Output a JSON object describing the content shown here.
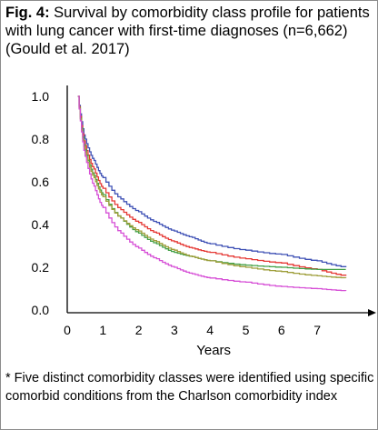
{
  "figure": {
    "title_bold": "Fig. 4:",
    "title_rest": " Survival by comorbidity class profile for patients with lung cancer with first-time diagnoses (n=6,662) (Gould et al. 2017)",
    "footnote": "* Five distinct comorbidity classes were identified using specific comorbid conditions from the Charlson comorbidity index"
  },
  "chart_data": {
    "type": "line",
    "title": "Survival by comorbidity class profile for patients with lung cancer with first-time diagnoses (n=6,662) (Gould et al. 2017)",
    "xlabel": "Years",
    "ylabel": "",
    "xlim": [
      0,
      8.6
    ],
    "ylim": [
      0,
      1.0
    ],
    "x_ticks": [
      "0",
      "1",
      "2",
      "3",
      "4",
      "5",
      "6",
      "7"
    ],
    "y_ticks": [
      "1.0",
      "0.8",
      "0.6",
      "0.4",
      "0.2",
      "0.0"
    ],
    "grid": false,
    "series": [
      {
        "color": "#3f51b5",
        "x": [
          0.3,
          0.5,
          0.75,
          1.0,
          1.5,
          2.0,
          2.5,
          3.0,
          3.5,
          4.0,
          5.0,
          6.0,
          7.0,
          7.8
        ],
        "values": [
          1.0,
          0.8,
          0.7,
          0.62,
          0.52,
          0.46,
          0.41,
          0.37,
          0.34,
          0.31,
          0.28,
          0.26,
          0.23,
          0.2
        ]
      },
      {
        "color": "#e53935",
        "x": [
          0.3,
          0.5,
          0.75,
          1.0,
          1.5,
          2.0,
          2.5,
          3.0,
          3.5,
          4.0,
          5.0,
          6.0,
          7.0,
          7.8
        ],
        "values": [
          1.0,
          0.77,
          0.66,
          0.57,
          0.47,
          0.41,
          0.36,
          0.32,
          0.29,
          0.27,
          0.24,
          0.22,
          0.19,
          0.16
        ]
      },
      {
        "color": "#43a047",
        "x": [
          0.3,
          0.5,
          0.75,
          1.0,
          1.5,
          2.0,
          2.5,
          3.0,
          3.5,
          4.0,
          5.0,
          6.0,
          7.0,
          7.8
        ],
        "values": [
          1.0,
          0.75,
          0.63,
          0.54,
          0.43,
          0.36,
          0.31,
          0.27,
          0.25,
          0.23,
          0.21,
          0.2,
          0.19,
          0.19
        ]
      },
      {
        "color": "#9e9e3a",
        "x": [
          0.3,
          0.5,
          0.75,
          1.0,
          1.5,
          2.0,
          2.5,
          3.0,
          3.5,
          4.0,
          5.0,
          6.0,
          7.0,
          7.8
        ],
        "values": [
          1.0,
          0.74,
          0.62,
          0.53,
          0.43,
          0.37,
          0.32,
          0.28,
          0.25,
          0.23,
          0.2,
          0.18,
          0.16,
          0.15
        ]
      },
      {
        "color": "#d64fd6",
        "x": [
          0.3,
          0.5,
          0.75,
          1.0,
          1.5,
          2.0,
          2.5,
          3.0,
          3.5,
          4.0,
          5.0,
          6.0,
          7.0,
          7.8
        ],
        "values": [
          1.0,
          0.72,
          0.58,
          0.48,
          0.36,
          0.29,
          0.24,
          0.2,
          0.17,
          0.15,
          0.13,
          0.11,
          0.1,
          0.09
        ]
      }
    ]
  }
}
